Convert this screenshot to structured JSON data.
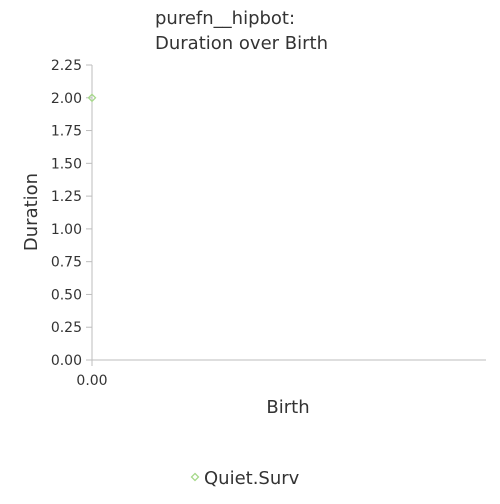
{
  "chart_data": {
    "type": "scatter",
    "title": "purefn__hipbot:",
    "subtitle": "Duration over Birth",
    "xlabel": "Birth",
    "ylabel": "Duration",
    "xlim": [
      0,
      1
    ],
    "ylim": [
      0,
      2.25
    ],
    "x_ticks": [
      "0.00"
    ],
    "y_ticks": [
      "0.00",
      "0.25",
      "0.50",
      "0.75",
      "1.00",
      "1.25",
      "1.50",
      "1.75",
      "2.00",
      "2.25"
    ],
    "grid": false,
    "legend_placement": "bottom",
    "series": [
      {
        "name": "Quiet.Surv",
        "color": "#a6d98a",
        "marker": "diamond",
        "points": [
          {
            "x": 0,
            "y": 2.0
          }
        ]
      }
    ]
  }
}
